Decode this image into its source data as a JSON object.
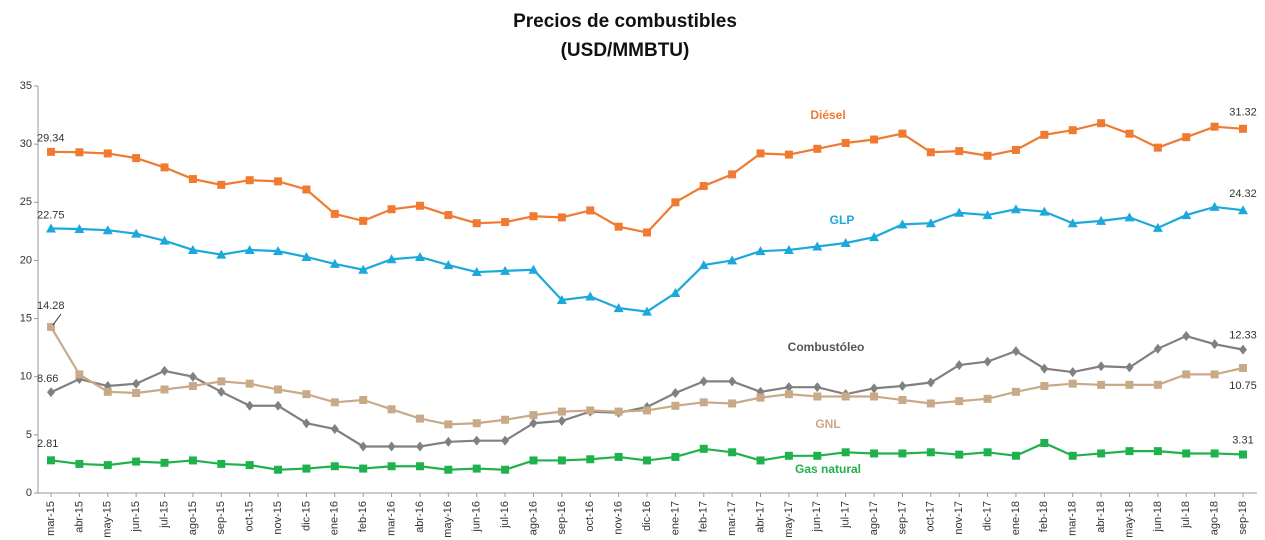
{
  "chart_data": {
    "type": "line",
    "title": "Precios de combustibles",
    "subtitle": "(USD/MMBTU)",
    "categories": [
      "mar-15",
      "abr-15",
      "may-15",
      "jun-15",
      "jul-15",
      "ago-15",
      "sep-15",
      "oct-15",
      "nov-15",
      "dic-15",
      "ene-16",
      "feb-16",
      "mar-16",
      "abr-16",
      "may-16",
      "jun-16",
      "jul-16",
      "ago-16",
      "sep-16",
      "oct-16",
      "nov-16",
      "dic-16",
      "ene-17",
      "feb-17",
      "mar-17",
      "abr-17",
      "may-17",
      "jun-17",
      "jul-17",
      "ago-17",
      "sep-17",
      "oct-17",
      "nov-17",
      "dic-17",
      "ene-18",
      "feb-18",
      "mar-18",
      "abr-18",
      "may-18",
      "jun-18",
      "jul-18",
      "ago-18",
      "sep-18"
    ],
    "series": [
      {
        "name": "Diésel",
        "color": "#f07a31",
        "marker": "square",
        "values": [
          29.34,
          29.3,
          29.2,
          28.8,
          28.0,
          27.0,
          26.5,
          26.9,
          26.8,
          26.1,
          24.0,
          23.4,
          24.4,
          24.7,
          23.9,
          23.2,
          23.3,
          23.8,
          23.7,
          24.3,
          22.9,
          22.4,
          25.0,
          26.4,
          27.4,
          29.2,
          29.1,
          29.6,
          30.1,
          30.4,
          30.9,
          29.3,
          29.4,
          29.0,
          29.5,
          30.8,
          31.2,
          31.8,
          30.9,
          29.7,
          30.6,
          31.5,
          31.32
        ]
      },
      {
        "name": "GLP",
        "color": "#1ba9dc",
        "marker": "triangle",
        "values": [
          22.75,
          22.7,
          22.6,
          22.3,
          21.7,
          20.9,
          20.5,
          20.9,
          20.8,
          20.3,
          19.7,
          19.2,
          20.1,
          20.3,
          19.6,
          19.0,
          19.1,
          19.2,
          16.6,
          16.9,
          15.9,
          15.6,
          17.2,
          19.6,
          20.0,
          20.8,
          20.9,
          21.2,
          21.5,
          22.0,
          23.1,
          23.2,
          24.1,
          23.9,
          24.4,
          24.2,
          23.2,
          23.4,
          23.7,
          22.8,
          23.9,
          24.6,
          24.32
        ]
      },
      {
        "name": "Combustóleo",
        "color": "#808080",
        "marker": "diamond",
        "values": [
          8.66,
          9.8,
          9.2,
          9.4,
          10.5,
          10.0,
          8.7,
          7.5,
          7.5,
          6.0,
          5.5,
          4.0,
          4.0,
          4.0,
          4.4,
          4.5,
          4.5,
          6.0,
          6.2,
          7.0,
          6.9,
          7.4,
          8.6,
          9.6,
          9.6,
          8.7,
          9.1,
          9.1,
          8.5,
          9.0,
          9.2,
          9.5,
          11.0,
          11.3,
          12.2,
          10.7,
          10.4,
          10.9,
          10.8,
          12.4,
          13.5,
          12.8,
          12.33
        ]
      },
      {
        "name": "GNL",
        "color": "#c8aa88",
        "marker": "square",
        "values": [
          14.28,
          10.2,
          8.7,
          8.6,
          8.9,
          9.2,
          9.6,
          9.4,
          8.9,
          8.5,
          7.8,
          8.0,
          7.2,
          6.4,
          5.9,
          6.0,
          6.3,
          6.7,
          7.0,
          7.1,
          7.0,
          7.1,
          7.5,
          7.8,
          7.7,
          8.2,
          8.5,
          8.3,
          8.3,
          8.3,
          8.0,
          7.7,
          7.9,
          8.1,
          8.7,
          9.2,
          9.4,
          9.3,
          9.3,
          9.3,
          10.2,
          10.2,
          10.75
        ]
      },
      {
        "name": "Gas natural",
        "color": "#1fb24c",
        "marker": "square",
        "values": [
          2.81,
          2.5,
          2.4,
          2.7,
          2.6,
          2.8,
          2.5,
          2.4,
          2.0,
          2.1,
          2.3,
          2.1,
          2.3,
          2.3,
          2.0,
          2.1,
          2.0,
          2.8,
          2.8,
          2.9,
          3.1,
          2.8,
          3.1,
          3.8,
          3.5,
          2.8,
          3.2,
          3.2,
          3.5,
          3.4,
          3.4,
          3.5,
          3.3,
          3.5,
          3.2,
          4.3,
          3.2,
          3.4,
          3.6,
          3.6,
          3.4,
          3.4,
          3.31
        ]
      }
    ],
    "ylim": [
      0,
      35
    ],
    "yticks": [
      0,
      5,
      10,
      15,
      20,
      25,
      30,
      35
    ],
    "grid": false
  }
}
